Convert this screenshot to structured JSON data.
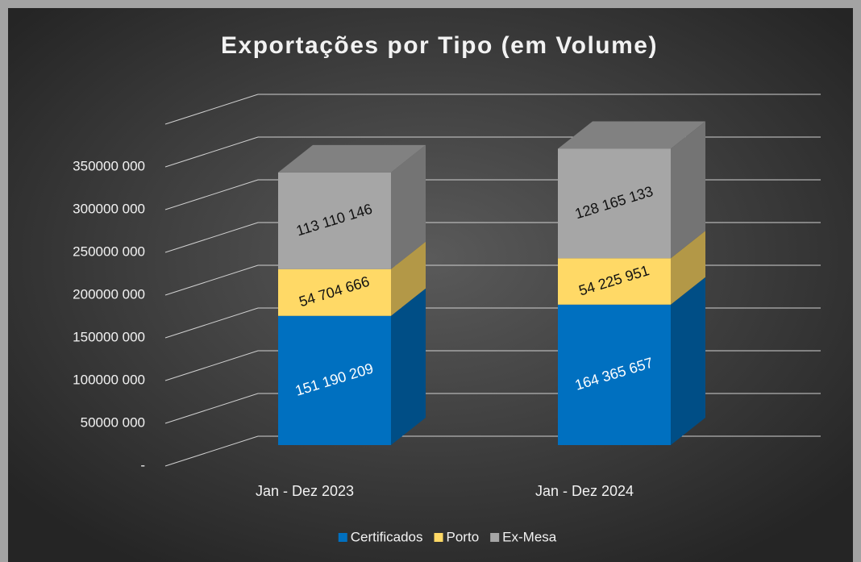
{
  "chart_data": {
    "type": "bar3d_stacked",
    "title": "Exportações por Tipo (em Volume)",
    "categories": [
      "Jan - Dez 2023",
      "Jan - Dez 2024"
    ],
    "series": [
      {
        "name": "Certificados",
        "color": "#0070c0",
        "values": [
          151190209,
          164365657
        ],
        "value_labels": [
          "151 190 209",
          "164 365 657"
        ]
      },
      {
        "name": "Porto",
        "color": "#ffd966",
        "values": [
          54704666,
          54225951
        ],
        "value_labels": [
          "54 704 666",
          "54 225 951"
        ]
      },
      {
        "name": "Ex-Mesa",
        "color": "#a6a6a6",
        "values": [
          113110146,
          128165133
        ],
        "value_labels": [
          "113 110 146",
          "128 165 133"
        ]
      }
    ],
    "ylim": [
      0,
      400000000
    ],
    "yticks": [
      {
        "value": 0,
        "label": "-"
      },
      {
        "value": 50000000,
        "label": "50000 000"
      },
      {
        "value": 100000000,
        "label": "100000 000"
      },
      {
        "value": 150000000,
        "label": "150000 000"
      },
      {
        "value": 200000000,
        "label": "200000 000"
      },
      {
        "value": 250000000,
        "label": "250000 000"
      },
      {
        "value": 300000000,
        "label": "300000 000"
      },
      {
        "value": 350000000,
        "label": "350000 000"
      }
    ],
    "grid": true,
    "legend": "bottom"
  }
}
